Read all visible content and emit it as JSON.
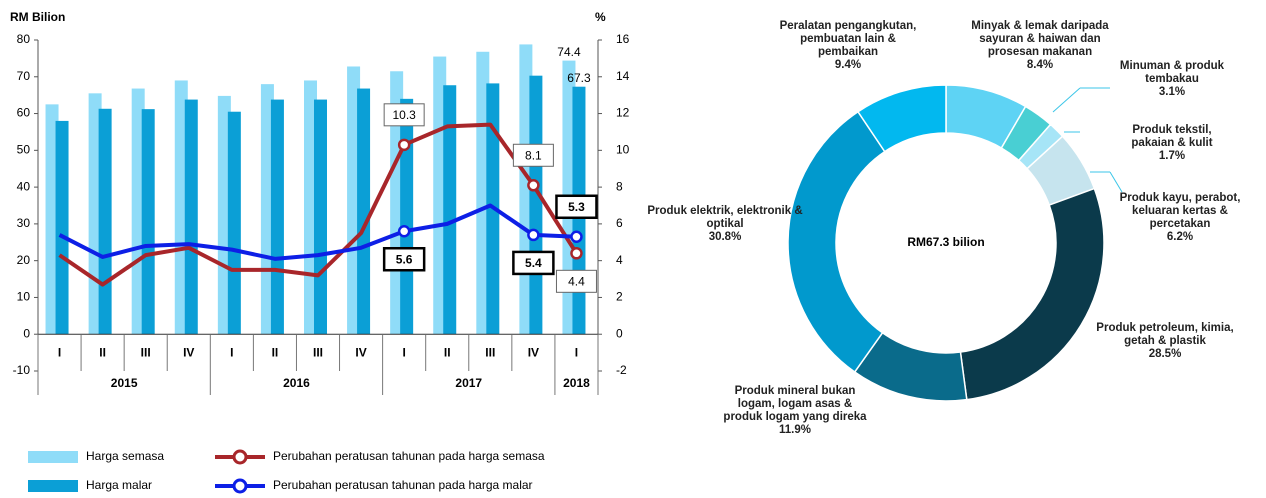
{
  "chart_data": [
    {
      "type": "bar",
      "y_label": "RM Bilion",
      "y2_label": "%",
      "categories": [
        "I",
        "II",
        "III",
        "IV",
        "I",
        "II",
        "III",
        "IV",
        "I",
        "II",
        "III",
        "IV",
        "I"
      ],
      "years": [
        "2015",
        "2015",
        "2015",
        "2015",
        "2016",
        "2016",
        "2016",
        "2016",
        "2017",
        "2017",
        "2017",
        "2017",
        "2018"
      ],
      "ylim": [
        -10,
        80
      ],
      "yticks": [
        -10,
        0,
        10,
        20,
        30,
        40,
        50,
        60,
        70,
        80
      ],
      "y2lim": [
        -2,
        16
      ],
      "y2ticks": [
        -2,
        0,
        2,
        4,
        6,
        8,
        10,
        12,
        14,
        16
      ],
      "series": [
        {
          "name": "Harga semasa",
          "type": "bar",
          "color": "#8fdcf8",
          "values": [
            62.5,
            65.5,
            66.8,
            69,
            64.8,
            68,
            69,
            72.8,
            71.5,
            75.5,
            76.8,
            78.8,
            74.4
          ],
          "value_labels": [
            null,
            null,
            null,
            null,
            null,
            null,
            null,
            null,
            null,
            null,
            null,
            null,
            "74.4"
          ]
        },
        {
          "name": "Harga malar",
          "type": "bar",
          "color": "#0b9fd6",
          "values": [
            58,
            61.3,
            61.2,
            63.8,
            60.5,
            63.8,
            63.8,
            66.8,
            64,
            67.7,
            68.2,
            70.3,
            67.3
          ],
          "value_labels": [
            null,
            null,
            null,
            null,
            null,
            null,
            null,
            null,
            null,
            null,
            null,
            null,
            "67.3"
          ]
        },
        {
          "name": "Perubahan peratusan tahunan pada harga semasa",
          "type": "line",
          "axis": "y2",
          "color": "#a8262a",
          "values": [
            4.3,
            2.7,
            4.3,
            4.7,
            3.5,
            3.5,
            3.2,
            5.5,
            10.3,
            11.3,
            11.4,
            8.1,
            4.4
          ],
          "value_labels": [
            null,
            null,
            null,
            null,
            null,
            null,
            null,
            null,
            "10.3",
            null,
            null,
            "8.1",
            "4.4"
          ]
        },
        {
          "name": "Perubahan peratusan tahunan pada harga malar",
          "type": "line",
          "axis": "y2",
          "color": "#0d1fe6",
          "values": [
            5.4,
            4.2,
            4.8,
            4.9,
            4.6,
            4.1,
            4.3,
            4.7,
            5.6,
            6.0,
            7.0,
            5.4,
            5.3
          ],
          "value_labels": [
            null,
            null,
            null,
            null,
            null,
            null,
            null,
            null,
            "5.6",
            null,
            null,
            "5.4",
            "5.3"
          ]
        }
      ]
    },
    {
      "type": "donut",
      "center_label": "RM67.3 bilion",
      "categories": [
        "Minyak & lemak daripada sayuran & haiwan dan prosesan makanan",
        "Minuman & produk tembakau",
        "Produk tekstil, pakaian & kulit",
        "Produk kayu, perabot, keluaran kertas & percetakan",
        "Produk petroleum, kimia, getah & plastik",
        "Produk mineral bukan logam, logam asas & produk logam yang direka",
        "Produk elektrik, elektronik & optikal",
        "Peralatan pengangkutan, pembuatan lain & pembaikan"
      ],
      "values": [
        8.4,
        3.1,
        1.7,
        6.2,
        28.5,
        11.9,
        30.8,
        9.4
      ],
      "value_labels": [
        "8.4%",
        "3.1%",
        "1.7%",
        "6.2%",
        "28.5%",
        "11.9%",
        "30.8%",
        "9.4%"
      ],
      "colors": [
        "#5ed3f4",
        "#49cfd3",
        "#a6e5f7",
        "#c6e4ee",
        "#0b3a4b",
        "#0a6b8b",
        "#0199cd",
        "#02b8ef"
      ]
    }
  ]
}
